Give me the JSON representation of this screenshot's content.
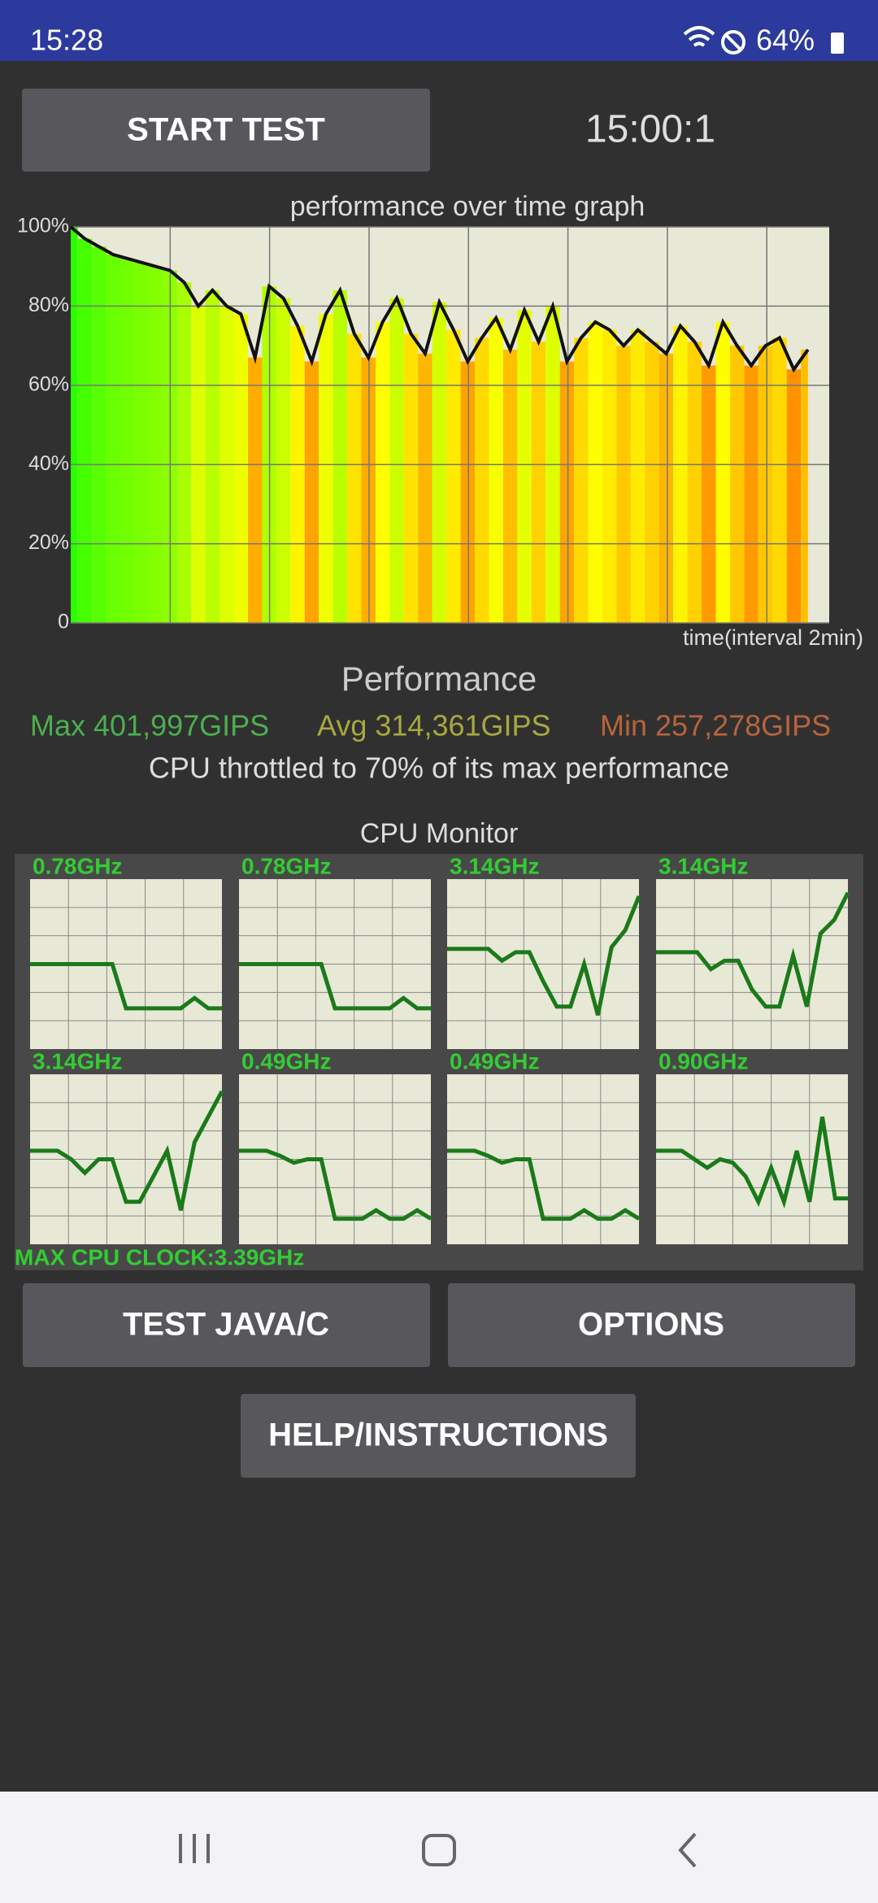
{
  "status_bar": {
    "time": "15:28",
    "battery": "64%"
  },
  "controls": {
    "start_button": "START TEST",
    "timer": "15:00:1"
  },
  "chart_data": {
    "type": "area",
    "title": "performance over time graph",
    "x_label": "time(interval 2min)",
    "values": [
      100,
      97,
      95,
      93,
      92,
      91,
      90,
      89,
      86,
      80,
      84,
      80,
      78,
      67,
      85,
      82,
      75,
      66,
      78,
      84,
      73,
      67,
      76,
      82,
      73,
      68,
      81,
      74,
      66,
      72,
      77,
      69,
      79,
      71,
      80,
      66,
      72,
      76,
      74,
      70,
      74,
      71,
      68,
      75,
      71,
      65,
      76,
      70,
      65,
      70,
      72,
      64,
      69
    ],
    "ylim": [
      0,
      100
    ],
    "yticks": [
      0,
      {
        "value": 20,
        "label": "20%"
      },
      {
        "value": 40,
        "label": "40%"
      },
      {
        "value": 60,
        "label": "60%"
      },
      {
        "value": 80,
        "label": "80%"
      },
      {
        "value": 100,
        "label": "100%"
      }
    ],
    "grid": true,
    "line_color": "#111111",
    "background": "#e8e8d6"
  },
  "performance": {
    "title": "Performance",
    "max": "Max 401,997GIPS",
    "avg": "Avg 314,361GIPS",
    "min": "Min 257,278GIPS",
    "summary": "CPU throttled to 70% of its max performance"
  },
  "cpu_monitor": {
    "title": "CPU Monitor",
    "ylim": [
      0,
      100
    ],
    "line_color": "#1a7a1a",
    "cores": [
      {
        "label": "0.78GHz",
        "values": [
          50,
          50,
          50,
          50,
          50,
          50,
          50,
          24,
          24,
          24,
          24,
          24,
          30,
          24,
          24
        ]
      },
      {
        "label": "0.78GHz",
        "values": [
          50,
          50,
          50,
          50,
          50,
          50,
          50,
          24,
          24,
          24,
          24,
          24,
          30,
          24,
          24
        ]
      },
      {
        "label": "3.14GHz",
        "values": [
          59,
          59,
          59,
          59,
          52,
          57,
          57,
          40,
          25,
          25,
          50,
          20,
          60,
          70,
          90
        ]
      },
      {
        "label": "3.14GHz",
        "values": [
          57,
          57,
          57,
          57,
          47,
          52,
          52,
          35,
          25,
          25,
          55,
          25,
          68,
          76,
          92
        ]
      },
      {
        "label": "3.14GHz",
        "values": [
          55,
          55,
          55,
          50,
          42,
          50,
          50,
          25,
          25,
          40,
          55,
          20,
          60,
          75,
          90
        ]
      },
      {
        "label": "0.49GHz",
        "values": [
          55,
          55,
          55,
          52,
          48,
          50,
          50,
          15,
          15,
          15,
          20,
          15,
          15,
          20,
          15
        ]
      },
      {
        "label": "0.49GHz",
        "values": [
          55,
          55,
          55,
          52,
          48,
          50,
          50,
          15,
          15,
          15,
          20,
          15,
          15,
          20,
          15
        ]
      },
      {
        "label": "0.90GHz",
        "values": [
          55,
          55,
          55,
          50,
          45,
          50,
          48,
          40,
          25,
          45,
          25,
          55,
          25,
          75,
          27,
          27
        ]
      }
    ],
    "max_clock": "MAX CPU CLOCK:3.39GHz"
  },
  "buttons": {
    "test": "TEST JAVA/C",
    "options": "OPTIONS",
    "help": "HELP/INSTRUCTIONS"
  }
}
